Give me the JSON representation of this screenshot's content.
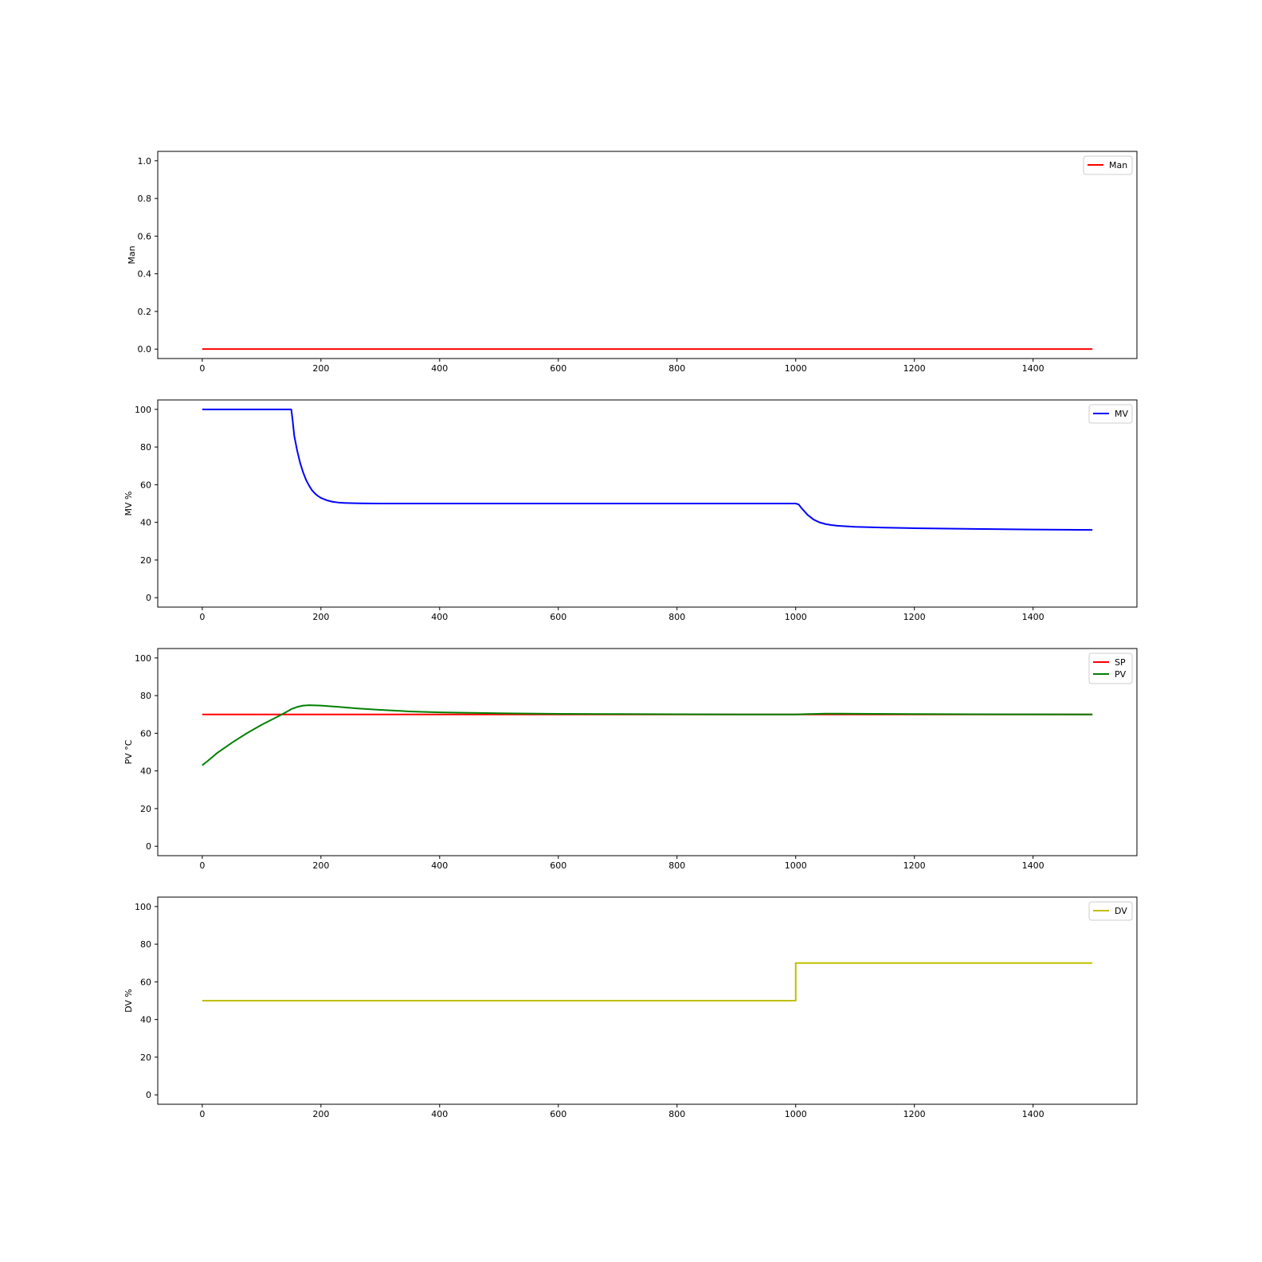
{
  "chart_data": [
    {
      "type": "line",
      "ylabel": "Man",
      "xlim": [
        -75,
        1575
      ],
      "ylim": [
        -0.05,
        1.05
      ],
      "xticks": [
        0,
        200,
        400,
        600,
        800,
        1000,
        1200,
        1400
      ],
      "yticks": [
        0.0,
        0.2,
        0.4,
        0.6,
        0.8,
        1.0
      ],
      "ytick_labels": [
        "0.0",
        "0.2",
        "0.4",
        "0.6",
        "0.8",
        "1.0"
      ],
      "grid": false,
      "legend_position": "top-right",
      "series": [
        {
          "name": "Man",
          "color": "#ff0000",
          "x": [
            0,
            1500
          ],
          "y": [
            0,
            0
          ]
        }
      ]
    },
    {
      "type": "line",
      "ylabel": "MV %",
      "xlim": [
        -75,
        1575
      ],
      "ylim": [
        -5,
        105
      ],
      "xticks": [
        0,
        200,
        400,
        600,
        800,
        1000,
        1200,
        1400
      ],
      "yticks": [
        0,
        20,
        40,
        60,
        80,
        100
      ],
      "ytick_labels": [
        "0",
        "20",
        "40",
        "60",
        "80",
        "100"
      ],
      "grid": false,
      "legend_position": "top-right",
      "series": [
        {
          "name": "MV",
          "color": "#0000ff",
          "x": [
            0,
            150,
            152,
            155,
            160,
            165,
            170,
            175,
            180,
            185,
            190,
            195,
            200,
            210,
            220,
            230,
            240,
            250,
            265,
            280,
            300,
            400,
            600,
            800,
            1000,
            1005,
            1010,
            1020,
            1030,
            1040,
            1050,
            1060,
            1070,
            1080,
            1100,
            1150,
            1200,
            1300,
            1400,
            1500
          ],
          "y": [
            100,
            100,
            95,
            86,
            78,
            71.5,
            66.5,
            62.5,
            59.5,
            57,
            55.3,
            54,
            53,
            51.7,
            50.9,
            50.5,
            50.3,
            50.2,
            50.1,
            50.05,
            50,
            50,
            50,
            50,
            50,
            49.5,
            47.5,
            44,
            41.5,
            40,
            39.1,
            38.6,
            38.2,
            38,
            37.6,
            37.2,
            36.9,
            36.5,
            36.2,
            36
          ]
        }
      ]
    },
    {
      "type": "line",
      "ylabel": "PV °C",
      "xlim": [
        -75,
        1575
      ],
      "ylim": [
        -5,
        105
      ],
      "xticks": [
        0,
        200,
        400,
        600,
        800,
        1000,
        1200,
        1400
      ],
      "yticks": [
        0,
        20,
        40,
        60,
        80,
        100
      ],
      "ytick_labels": [
        "0",
        "20",
        "40",
        "60",
        "80",
        "100"
      ],
      "grid": false,
      "legend_position": "top-right",
      "series": [
        {
          "name": "SP",
          "color": "#ff0000",
          "x": [
            0,
            1500
          ],
          "y": [
            70,
            70
          ]
        },
        {
          "name": "PV",
          "color": "#008000",
          "x": [
            0,
            10,
            25,
            50,
            75,
            100,
            125,
            140,
            150,
            160,
            170,
            180,
            200,
            230,
            260,
            300,
            350,
            400,
            500,
            600,
            700,
            800,
            900,
            1000,
            1020,
            1050,
            1080,
            1100,
            1200,
            1300,
            1400,
            1500
          ],
          "y": [
            43,
            45.5,
            49.5,
            55,
            60,
            64.5,
            68.5,
            71,
            72.8,
            74,
            74.7,
            74.9,
            74.7,
            74,
            73.2,
            72.4,
            71.6,
            71.1,
            70.6,
            70.3,
            70.2,
            70.1,
            70,
            70,
            70.2,
            70.4,
            70.4,
            70.35,
            70.2,
            70.1,
            70.05,
            70
          ]
        }
      ]
    },
    {
      "type": "line",
      "ylabel": "DV %",
      "xlim": [
        -75,
        1575
      ],
      "ylim": [
        -5,
        105
      ],
      "xticks": [
        0,
        200,
        400,
        600,
        800,
        1000,
        1200,
        1400
      ],
      "yticks": [
        0,
        20,
        40,
        60,
        80,
        100
      ],
      "ytick_labels": [
        "0",
        "20",
        "40",
        "60",
        "80",
        "100"
      ],
      "grid": false,
      "legend_position": "top-right",
      "series": [
        {
          "name": "DV",
          "color": "#bfbf00",
          "x": [
            0,
            1000,
            1000,
            1500
          ],
          "y": [
            50,
            50,
            70,
            70
          ]
        }
      ]
    }
  ]
}
